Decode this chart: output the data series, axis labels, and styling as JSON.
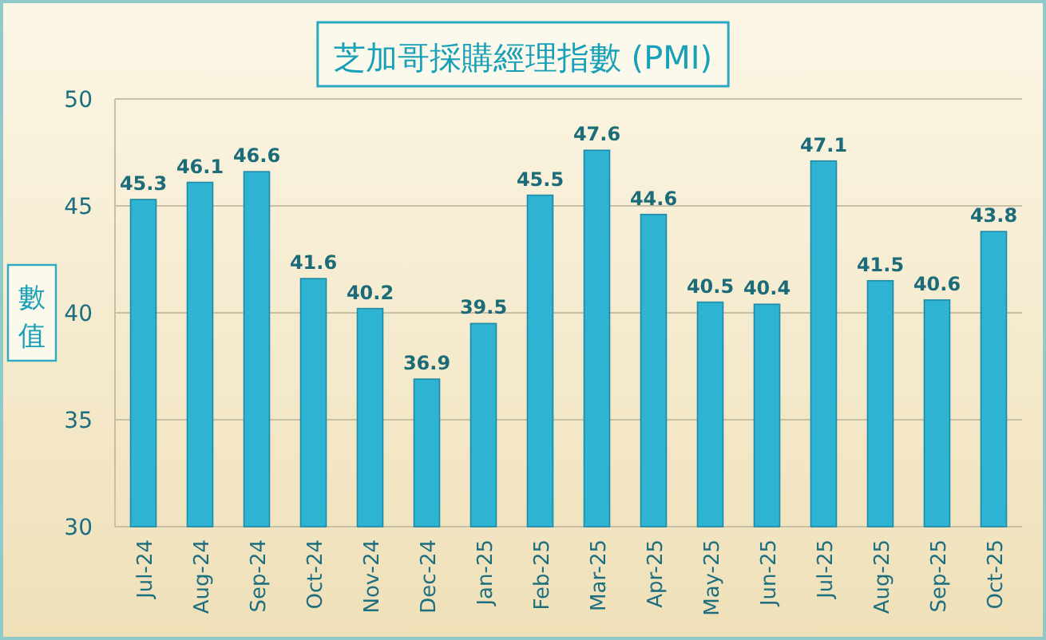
{
  "chart_data": {
    "type": "bar",
    "title": "芝加哥採購經理指數 (PMI)",
    "ylabel": "數值",
    "categories": [
      "Jul-24",
      "Aug-24",
      "Sep-24",
      "Oct-24",
      "Nov-24",
      "Dec-24",
      "Jan-25",
      "Feb-25",
      "Mar-25",
      "Apr-25",
      "May-25",
      "Jun-25",
      "Jul-25",
      "Aug-25",
      "Sep-25",
      "Oct-25"
    ],
    "values": [
      45.3,
      46.1,
      46.6,
      41.6,
      40.2,
      36.9,
      39.5,
      45.5,
      47.6,
      44.6,
      40.5,
      40.4,
      47.1,
      41.5,
      40.6,
      43.8
    ],
    "color": "#2fb3d3",
    "ylim": [
      30,
      50
    ],
    "yticks": [
      30,
      35,
      40,
      45,
      50
    ],
    "grid": "y",
    "data_labels": true
  }
}
